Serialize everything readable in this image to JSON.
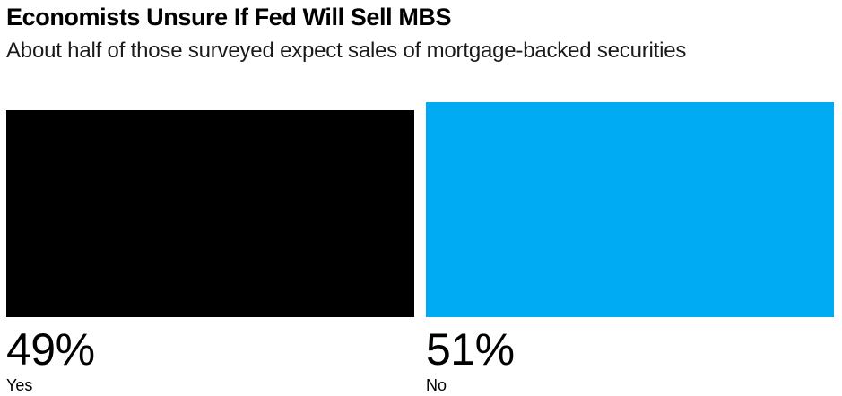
{
  "header": {
    "title": "Economists Unsure If Fed Will Sell MBS",
    "subtitle": "About half of those surveyed expect sales of mortgage-backed securities"
  },
  "chart_data": {
    "type": "bar",
    "title": "Economists Unsure If Fed Will Sell MBS",
    "subtitle": "About half of those surveyed expect sales of mortgage-backed securities",
    "categories": [
      "Yes",
      "No"
    ],
    "values": [
      49,
      51
    ],
    "value_labels": [
      "49%",
      "51%"
    ],
    "unit": "%",
    "colors": [
      "#000000",
      "#00ABF3"
    ],
    "xlabel": "",
    "ylabel": "",
    "ylim": [
      0,
      51
    ],
    "grid": false,
    "legend": "none",
    "orientation": "vertical",
    "bars_share_baseline": true
  },
  "colors": {
    "background": "#ffffff",
    "title_text": "#000000",
    "subtitle_text": "#1a1a1a",
    "bar_yes": "#000000",
    "bar_no": "#00ABF3",
    "label_text": "#000000"
  }
}
